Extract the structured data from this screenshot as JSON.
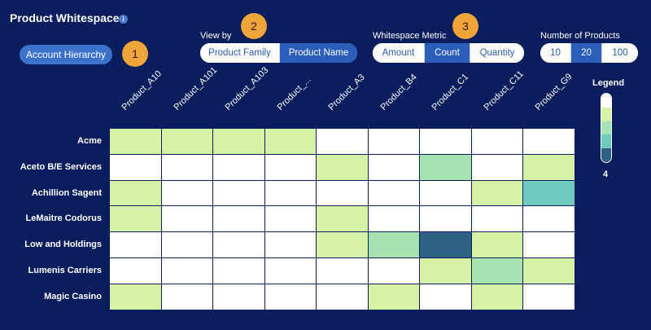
{
  "header": {
    "title": "Product Whitespace",
    "info_icon": "info-icon"
  },
  "account_hierarchy": {
    "label": "Account Hierarchy"
  },
  "badges": [
    "1",
    "2",
    "3"
  ],
  "view_by": {
    "label": "View by",
    "options": [
      "Product Family",
      "Product Name"
    ],
    "selected": "Product Name"
  },
  "metric": {
    "label": "Whitespace Metric",
    "options": [
      "Amount",
      "Count",
      "Quantity"
    ],
    "selected": "Count"
  },
  "num_products": {
    "label": "Number of Products",
    "options": [
      "10",
      "20",
      "100"
    ],
    "selected": "20"
  },
  "grid": {
    "columns": [
      "Product_A10",
      "Product_A101",
      "Product_A103",
      "Product_...",
      "Product_A3",
      "Product_B4",
      "Product_C1",
      "Product_C11",
      "Product_G9"
    ],
    "rows": [
      {
        "label": "Acme",
        "values": [
          1,
          1,
          1,
          1,
          0,
          0,
          0,
          0,
          0
        ]
      },
      {
        "label": "Aceto B/E Services",
        "values": [
          0,
          0,
          0,
          0,
          1,
          0,
          2,
          0,
          1
        ]
      },
      {
        "label": "Achillion Sagent",
        "values": [
          1,
          0,
          0,
          0,
          0,
          0,
          0,
          1,
          3
        ]
      },
      {
        "label": "LeMaitre Codorus",
        "values": [
          1,
          0,
          0,
          0,
          1,
          0,
          0,
          0,
          0
        ]
      },
      {
        "label": "Low and Holdings",
        "values": [
          0,
          0,
          0,
          0,
          1,
          2,
          4,
          1,
          0
        ]
      },
      {
        "label": "Lumenis Carriers",
        "values": [
          0,
          0,
          0,
          0,
          0,
          0,
          1,
          2,
          1
        ]
      },
      {
        "label": "Magic Casino",
        "values": [
          1,
          0,
          0,
          0,
          0,
          1,
          0,
          1,
          0
        ]
      }
    ]
  },
  "legend": {
    "title": "Legend",
    "max_label": "4",
    "colors": [
      "#ffffff",
      "#d6f2a4",
      "#a6e3b0",
      "#6ccbbd",
      "#2e6283"
    ]
  }
}
